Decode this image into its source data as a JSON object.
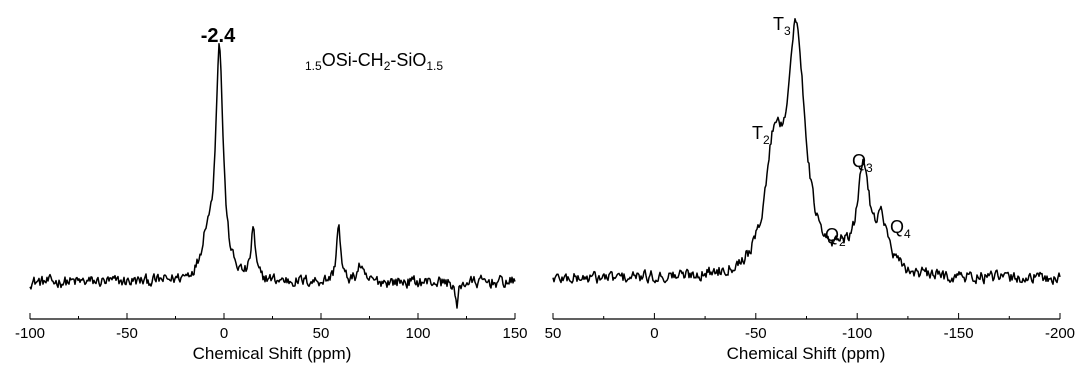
{
  "chart_data": [
    {
      "type": "line",
      "xlabel": "Chemical Shift (ppm)",
      "xlim": [
        -100,
        150
      ],
      "x_ticks": [
        -100,
        -50,
        0,
        50,
        100,
        150
      ],
      "x_tick_labels": [
        "-100",
        "-50",
        "0",
        "50",
        "100",
        "150"
      ],
      "y_axis_shown": false,
      "grid": false,
      "annotations": {
        "peak_label": "-2.4",
        "formula": [
          {
            "text": "1.5",
            "sub": true
          },
          {
            "text": "OSi-CH",
            "sub": false
          },
          {
            "text": "2",
            "sub": true
          },
          {
            "text": "-SiO",
            "sub": false
          },
          {
            "text": "1.5",
            "sub": true
          }
        ]
      },
      "peaks": [
        {
          "x": -2.4,
          "height": 1.0,
          "width": 2.4
        },
        {
          "x": -9,
          "height": 0.15,
          "width": 3
        },
        {
          "x": 15,
          "height": 0.22,
          "width": 1.2
        },
        {
          "x": 59,
          "height": 0.25,
          "width": 1.2
        },
        {
          "x": 70,
          "height": 0.07,
          "width": 1.5
        },
        {
          "x": 120,
          "height": -0.12,
          "width": 0.8
        }
      ],
      "baseline": 0
    },
    {
      "type": "line",
      "xlabel": "Chemical Shift (ppm)",
      "xlim": [
        50,
        -200
      ],
      "x_ticks": [
        50,
        0,
        -50,
        -100,
        -150,
        -200
      ],
      "x_tick_labels": [
        "50",
        "0",
        "-50",
        "-100",
        "-150",
        "-200"
      ],
      "y_axis_shown": false,
      "grid": false,
      "annotations": {
        "T3": {
          "main": "T",
          "sub": "3"
        },
        "T2": {
          "main": "T",
          "sub": "2"
        },
        "Q2": {
          "main": "Q",
          "sub": "2"
        },
        "Q3": {
          "main": "Q",
          "sub": "3"
        },
        "Q4": {
          "main": "Q",
          "sub": "4"
        }
      },
      "peaks": [
        {
          "x": -59,
          "height": 0.45,
          "width": 5
        },
        {
          "x": -70,
          "height": 0.98,
          "width": 5.5
        },
        {
          "x": -92,
          "height": 0.07,
          "width": 3
        },
        {
          "x": -103,
          "height": 0.43,
          "width": 3.5
        },
        {
          "x": -112,
          "height": 0.2,
          "width": 4
        }
      ],
      "baseline": 0
    }
  ]
}
